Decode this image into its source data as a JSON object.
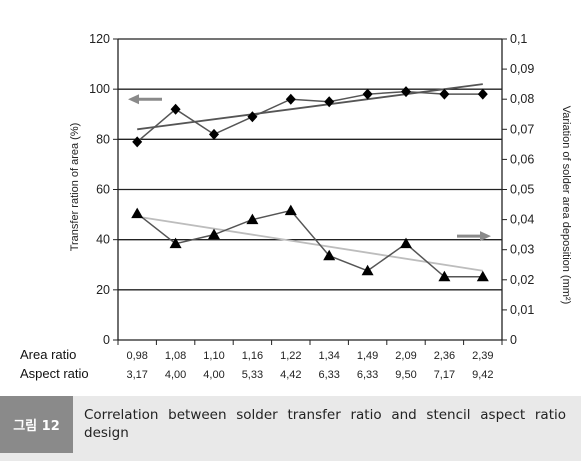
{
  "chart_data": {
    "type": "line",
    "categories": [
      {
        "area_ratio": "0,98",
        "aspect_ratio": "3,17"
      },
      {
        "area_ratio": "1,08",
        "aspect_ratio": "4,00"
      },
      {
        "area_ratio": "1,10",
        "aspect_ratio": "4,00"
      },
      {
        "area_ratio": "1,16",
        "aspect_ratio": "5,33"
      },
      {
        "area_ratio": "1,22",
        "aspect_ratio": "4,42"
      },
      {
        "area_ratio": "1,34",
        "aspect_ratio": "6,33"
      },
      {
        "area_ratio": "1,49",
        "aspect_ratio": "6,33"
      },
      {
        "area_ratio": "2,09",
        "aspect_ratio": "9,50"
      },
      {
        "area_ratio": "2,36",
        "aspect_ratio": "7,17"
      },
      {
        "area_ratio": "2,39",
        "aspect_ratio": "9,42"
      }
    ],
    "row_labels": [
      "Area ratio",
      "Aspect ratio"
    ],
    "ylabel_left": "Transfer ration of area (%)",
    "ylabel_right": "Variation of solder area deposition (mm²)",
    "ylim_left": [
      0,
      120
    ],
    "yticks_left": [
      "0",
      "20",
      "40",
      "60",
      "80",
      "100",
      "120"
    ],
    "ylim_right": [
      0,
      0.1
    ],
    "yticks_right": [
      "0",
      "0,01",
      "0,02",
      "0,03",
      "0,04",
      "0,05",
      "0,06",
      "0,07",
      "0,08",
      "0,09",
      "0,1"
    ],
    "gridlines_left": [
      20,
      40,
      60,
      80,
      100
    ],
    "series": [
      {
        "marker": "diamond",
        "axis": "left",
        "values": [
          79,
          92,
          82,
          89,
          96,
          95,
          98,
          99,
          98,
          98
        ],
        "trend": [
          84,
          102
        ],
        "trend_color": "#555555",
        "arrow": "left"
      },
      {
        "marker": "triangle",
        "axis": "right",
        "values": [
          0.042,
          0.032,
          0.035,
          0.04,
          0.043,
          0.028,
          0.023,
          0.032,
          0.021,
          0.021
        ],
        "trend": [
          0.041,
          0.023
        ],
        "trend_color": "#bdbdbd",
        "arrow": "right"
      }
    ],
    "grid": true
  },
  "caption": {
    "badge": "그림 12",
    "text": "Correlation between solder transfer ratio and stencil aspect ratio design"
  }
}
